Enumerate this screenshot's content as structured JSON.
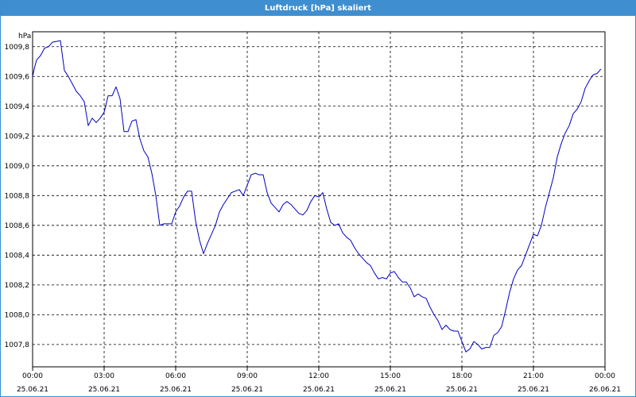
{
  "window": {
    "title": "Luftdruck [hPa] skaliert",
    "accent_color": "#3f8ecf"
  },
  "chart_data": {
    "type": "line",
    "title": "Luftdruck [hPa] skaliert",
    "ylabel": "hPa",
    "xlabel": "",
    "ylim": [
      1007.65,
      1009.9
    ],
    "xlim": [
      "2021-06-25 00:00",
      "2021-06-26 00:00"
    ],
    "grid": true,
    "grid_style": "dashed",
    "line_color": "#0000c0",
    "y_ticks": [
      {
        "value": 1007.8,
        "label": "1007,8"
      },
      {
        "value": 1008.0,
        "label": "1008,0"
      },
      {
        "value": 1008.2,
        "label": "1008,2"
      },
      {
        "value": 1008.4,
        "label": "1008,4"
      },
      {
        "value": 1008.6,
        "label": "1008,6"
      },
      {
        "value": 1008.8,
        "label": "1008,8"
      },
      {
        "value": 1009.0,
        "label": "1009,0"
      },
      {
        "value": 1009.2,
        "label": "1009,2"
      },
      {
        "value": 1009.4,
        "label": "1009,4"
      },
      {
        "value": 1009.6,
        "label": "1009,6"
      },
      {
        "value": 1009.8,
        "label": "1009,8"
      }
    ],
    "x_ticks": [
      {
        "value": "2021-06-25 00:00",
        "time": "00:00",
        "date": "25.06.21"
      },
      {
        "value": "2021-06-25 03:00",
        "time": "03:00",
        "date": "25.06.21"
      },
      {
        "value": "2021-06-25 06:00",
        "time": "06:00",
        "date": "25.06.21"
      },
      {
        "value": "2021-06-25 09:00",
        "time": "09:00",
        "date": "25.06.21"
      },
      {
        "value": "2021-06-25 12:00",
        "time": "12:00",
        "date": "25.06.21"
      },
      {
        "value": "2021-06-25 15:00",
        "time": "15:00",
        "date": "25.06.21"
      },
      {
        "value": "2021-06-25 18:00",
        "time": "18:00",
        "date": "25.06.21"
      },
      {
        "value": "2021-06-25 21:00",
        "time": "21:00",
        "date": "25.06.21"
      },
      {
        "value": "2021-06-26 00:00",
        "time": "00:00",
        "date": "26.06.21"
      }
    ],
    "series": [
      {
        "points": [
          [
            "2021-06-25 00:00",
            1009.6
          ],
          [
            "2021-06-25 00:05",
            1009.66
          ],
          [
            "2021-06-25 00:10",
            1009.71
          ],
          [
            "2021-06-25 00:20",
            1009.74
          ],
          [
            "2021-06-25 00:30",
            1009.79
          ],
          [
            "2021-06-25 00:40",
            1009.8
          ],
          [
            "2021-06-25 00:50",
            1009.83
          ],
          [
            "2021-06-25 01:10",
            1009.84
          ],
          [
            "2021-06-25 01:20",
            1009.64
          ],
          [
            "2021-06-25 01:30",
            1009.6
          ],
          [
            "2021-06-25 01:40",
            1009.55
          ],
          [
            "2021-06-25 01:50",
            1009.5
          ],
          [
            "2021-06-25 02:00",
            1009.47
          ],
          [
            "2021-06-25 02:10",
            1009.43
          ],
          [
            "2021-06-25 02:20",
            1009.27
          ],
          [
            "2021-06-25 02:30",
            1009.32
          ],
          [
            "2021-06-25 02:40",
            1009.29
          ],
          [
            "2021-06-25 02:50",
            1009.32
          ],
          [
            "2021-06-25 03:00",
            1009.36
          ],
          [
            "2021-06-25 03:10",
            1009.47
          ],
          [
            "2021-06-25 03:20",
            1009.47
          ],
          [
            "2021-06-25 03:30",
            1009.53
          ],
          [
            "2021-06-25 03:40",
            1009.45
          ],
          [
            "2021-06-25 03:50",
            1009.23
          ],
          [
            "2021-06-25 04:00",
            1009.23
          ],
          [
            "2021-06-25 04:10",
            1009.3
          ],
          [
            "2021-06-25 04:20",
            1009.31
          ],
          [
            "2021-06-25 04:30",
            1009.18
          ],
          [
            "2021-06-25 04:40",
            1009.1
          ],
          [
            "2021-06-25 04:50",
            1009.06
          ],
          [
            "2021-06-25 05:00",
            1008.95
          ],
          [
            "2021-06-25 05:10",
            1008.8
          ],
          [
            "2021-06-25 05:20",
            1008.6
          ],
          [
            "2021-06-25 05:30",
            1008.61
          ],
          [
            "2021-06-25 05:40",
            1008.61
          ],
          [
            "2021-06-25 05:50",
            1008.61
          ],
          [
            "2021-06-25 06:00",
            1008.69
          ],
          [
            "2021-06-25 06:10",
            1008.73
          ],
          [
            "2021-06-25 06:20",
            1008.79
          ],
          [
            "2021-06-25 06:30",
            1008.83
          ],
          [
            "2021-06-25 06:40",
            1008.83
          ],
          [
            "2021-06-25 06:50",
            1008.63
          ],
          [
            "2021-06-25 07:00",
            1008.5
          ],
          [
            "2021-06-25 07:10",
            1008.41
          ],
          [
            "2021-06-25 07:20",
            1008.48
          ],
          [
            "2021-06-25 07:30",
            1008.54
          ],
          [
            "2021-06-25 07:40",
            1008.6
          ],
          [
            "2021-06-25 07:50",
            1008.69
          ],
          [
            "2021-06-25 08:00",
            1008.74
          ],
          [
            "2021-06-25 08:10",
            1008.78
          ],
          [
            "2021-06-25 08:20",
            1008.82
          ],
          [
            "2021-06-25 08:30",
            1008.83
          ],
          [
            "2021-06-25 08:40",
            1008.84
          ],
          [
            "2021-06-25 08:50",
            1008.8
          ],
          [
            "2021-06-25 09:00",
            1008.87
          ],
          [
            "2021-06-25 09:10",
            1008.94
          ],
          [
            "2021-06-25 09:20",
            1008.95
          ],
          [
            "2021-06-25 09:30",
            1008.94
          ],
          [
            "2021-06-25 09:40",
            1008.94
          ],
          [
            "2021-06-25 09:50",
            1008.82
          ],
          [
            "2021-06-25 10:00",
            1008.75
          ],
          [
            "2021-06-25 10:10",
            1008.72
          ],
          [
            "2021-06-25 10:20",
            1008.69
          ],
          [
            "2021-06-25 10:30",
            1008.74
          ],
          [
            "2021-06-25 10:40",
            1008.76
          ],
          [
            "2021-06-25 10:50",
            1008.74
          ],
          [
            "2021-06-25 11:00",
            1008.71
          ],
          [
            "2021-06-25 11:10",
            1008.68
          ],
          [
            "2021-06-25 11:20",
            1008.67
          ],
          [
            "2021-06-25 11:30",
            1008.7
          ],
          [
            "2021-06-25 11:40",
            1008.76
          ],
          [
            "2021-06-25 11:50",
            1008.8
          ],
          [
            "2021-06-25 12:00",
            1008.79
          ],
          [
            "2021-06-25 12:10",
            1008.82
          ],
          [
            "2021-06-25 12:20",
            1008.71
          ],
          [
            "2021-06-25 12:30",
            1008.62
          ],
          [
            "2021-06-25 12:40",
            1008.6
          ],
          [
            "2021-06-25 12:50",
            1008.61
          ],
          [
            "2021-06-25 13:00",
            1008.55
          ],
          [
            "2021-06-25 13:10",
            1008.52
          ],
          [
            "2021-06-25 13:20",
            1008.5
          ],
          [
            "2021-06-25 13:30",
            1008.45
          ],
          [
            "2021-06-25 13:40",
            1008.41
          ],
          [
            "2021-06-25 13:50",
            1008.38
          ],
          [
            "2021-06-25 14:00",
            1008.35
          ],
          [
            "2021-06-25 14:10",
            1008.33
          ],
          [
            "2021-06-25 14:20",
            1008.28
          ],
          [
            "2021-06-25 14:30",
            1008.24
          ],
          [
            "2021-06-25 14:40",
            1008.25
          ],
          [
            "2021-06-25 14:50",
            1008.24
          ],
          [
            "2021-06-25 15:00",
            1008.28
          ],
          [
            "2021-06-25 15:10",
            1008.29
          ],
          [
            "2021-06-25 15:20",
            1008.25
          ],
          [
            "2021-06-25 15:30",
            1008.22
          ],
          [
            "2021-06-25 15:40",
            1008.22
          ],
          [
            "2021-06-25 15:50",
            1008.18
          ],
          [
            "2021-06-25 16:00",
            1008.12
          ],
          [
            "2021-06-25 16:10",
            1008.14
          ],
          [
            "2021-06-25 16:20",
            1008.12
          ],
          [
            "2021-06-25 16:30",
            1008.11
          ],
          [
            "2021-06-25 16:40",
            1008.05
          ],
          [
            "2021-06-25 16:50",
            1008.0
          ],
          [
            "2021-06-25 17:00",
            1007.96
          ],
          [
            "2021-06-25 17:10",
            1007.9
          ],
          [
            "2021-06-25 17:20",
            1007.93
          ],
          [
            "2021-06-25 17:30",
            1007.9
          ],
          [
            "2021-06-25 17:40",
            1007.89
          ],
          [
            "2021-06-25 17:50",
            1007.89
          ],
          [
            "2021-06-25 18:00",
            1007.82
          ],
          [
            "2021-06-25 18:10",
            1007.75
          ],
          [
            "2021-06-25 18:20",
            1007.77
          ],
          [
            "2021-06-25 18:30",
            1007.82
          ],
          [
            "2021-06-25 18:40",
            1007.8
          ],
          [
            "2021-06-25 18:50",
            1007.77
          ],
          [
            "2021-06-25 19:00",
            1007.78
          ],
          [
            "2021-06-25 19:10",
            1007.78
          ],
          [
            "2021-06-25 19:20",
            1007.86
          ],
          [
            "2021-06-25 19:30",
            1007.88
          ],
          [
            "2021-06-25 19:40",
            1007.92
          ],
          [
            "2021-06-25 19:50",
            1008.03
          ],
          [
            "2021-06-25 20:00",
            1008.15
          ],
          [
            "2021-06-25 20:10",
            1008.24
          ],
          [
            "2021-06-25 20:20",
            1008.3
          ],
          [
            "2021-06-25 20:30",
            1008.33
          ],
          [
            "2021-06-25 20:40",
            1008.4
          ],
          [
            "2021-06-25 20:50",
            1008.47
          ],
          [
            "2021-06-25 21:00",
            1008.54
          ],
          [
            "2021-06-25 21:10",
            1008.53
          ],
          [
            "2021-06-25 21:20",
            1008.6
          ],
          [
            "2021-06-25 21:30",
            1008.72
          ],
          [
            "2021-06-25 21:40",
            1008.82
          ],
          [
            "2021-06-25 21:50",
            1008.92
          ],
          [
            "2021-06-25 22:00",
            1009.06
          ],
          [
            "2021-06-25 22:10",
            1009.15
          ],
          [
            "2021-06-25 22:20",
            1009.22
          ],
          [
            "2021-06-25 22:30",
            1009.27
          ],
          [
            "2021-06-25 22:40",
            1009.35
          ],
          [
            "2021-06-25 22:50",
            1009.38
          ],
          [
            "2021-06-25 23:00",
            1009.43
          ],
          [
            "2021-06-25 23:10",
            1009.52
          ],
          [
            "2021-06-25 23:20",
            1009.57
          ],
          [
            "2021-06-25 23:30",
            1009.61
          ],
          [
            "2021-06-25 23:40",
            1009.62
          ],
          [
            "2021-06-25 23:50",
            1009.65
          ]
        ]
      }
    ]
  }
}
